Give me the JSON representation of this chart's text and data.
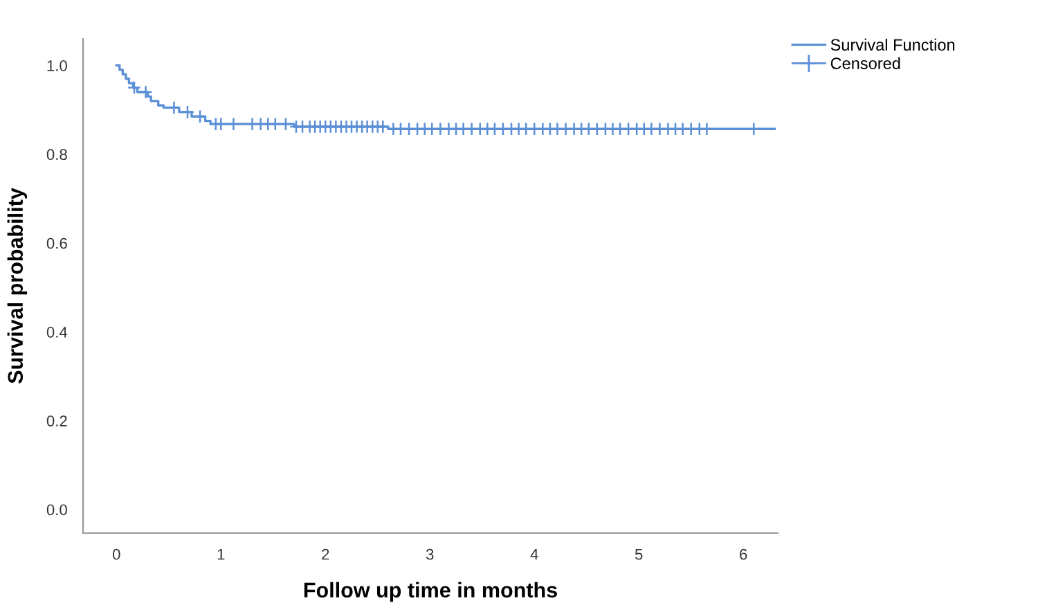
{
  "chart_data": {
    "type": "step",
    "xlabel": "Follow up time in months",
    "ylabel": "Survival probability",
    "xlim": [
      -0.32,
      6.33
    ],
    "ylim": [
      -0.053,
      1.06
    ],
    "xticks": [
      0,
      1,
      2,
      3,
      4,
      5,
      6
    ],
    "yticks": [
      {
        "value": 0,
        "label": "0.0"
      },
      {
        "value": 0.2,
        "label": "0.2"
      },
      {
        "value": 0.4,
        "label": "0.4"
      },
      {
        "value": 0.6,
        "label": "0.6"
      },
      {
        "value": 0.8,
        "label": "0.8"
      },
      {
        "value": 1,
        "label": "1.0"
      }
    ],
    "grid": false,
    "legend": "top right",
    "series": [
      {
        "name": "Survival Function",
        "color": "#5b8fd6",
        "marker": "none",
        "x": [
          0,
          0.03,
          0.06,
          0.09,
          0.12,
          0.16,
          0.2,
          0.3,
          0.33,
          0.4,
          0.45,
          0.6,
          0.72,
          0.85,
          0.9,
          1.7,
          2.6,
          6.3
        ],
        "values": [
          1.0,
          0.99,
          0.98,
          0.97,
          0.96,
          0.95,
          0.94,
          0.93,
          0.92,
          0.91,
          0.905,
          0.895,
          0.885,
          0.875,
          0.868,
          0.862,
          0.857,
          0.857
        ]
      },
      {
        "name": "Censored",
        "type": "scatter",
        "color": "#5b8fd6",
        "marker": "cross",
        "x": [
          0.17,
          0.28,
          0.55,
          0.68,
          0.8,
          0.95,
          1.0,
          1.12,
          1.3,
          1.38,
          1.45,
          1.52,
          1.62,
          1.72,
          1.78,
          1.85,
          1.9,
          1.95,
          2.0,
          2.05,
          2.1,
          2.15,
          2.2,
          2.25,
          2.3,
          2.35,
          2.4,
          2.45,
          2.5,
          2.55,
          2.65,
          2.72,
          2.8,
          2.88,
          2.95,
          3.02,
          3.1,
          3.18,
          3.25,
          3.32,
          3.4,
          3.48,
          3.55,
          3.62,
          3.7,
          3.78,
          3.85,
          3.92,
          4.0,
          4.08,
          4.15,
          4.22,
          4.3,
          4.38,
          4.45,
          4.52,
          4.6,
          4.68,
          4.75,
          4.82,
          4.9,
          4.98,
          5.05,
          5.12,
          5.2,
          5.28,
          5.35,
          5.42,
          5.5,
          5.58,
          5.65,
          6.1
        ],
        "values": [
          0.95,
          0.94,
          0.905,
          0.895,
          0.885,
          0.868,
          0.868,
          0.868,
          0.868,
          0.868,
          0.868,
          0.868,
          0.868,
          0.862,
          0.862,
          0.862,
          0.862,
          0.862,
          0.862,
          0.862,
          0.862,
          0.862,
          0.862,
          0.862,
          0.862,
          0.862,
          0.862,
          0.862,
          0.862,
          0.862,
          0.857,
          0.857,
          0.857,
          0.857,
          0.857,
          0.857,
          0.857,
          0.857,
          0.857,
          0.857,
          0.857,
          0.857,
          0.857,
          0.857,
          0.857,
          0.857,
          0.857,
          0.857,
          0.857,
          0.857,
          0.857,
          0.857,
          0.857,
          0.857,
          0.857,
          0.857,
          0.857,
          0.857,
          0.857,
          0.857,
          0.857,
          0.857,
          0.857,
          0.857,
          0.857,
          0.857,
          0.857,
          0.857,
          0.857,
          0.857,
          0.857,
          0.857
        ]
      }
    ]
  }
}
